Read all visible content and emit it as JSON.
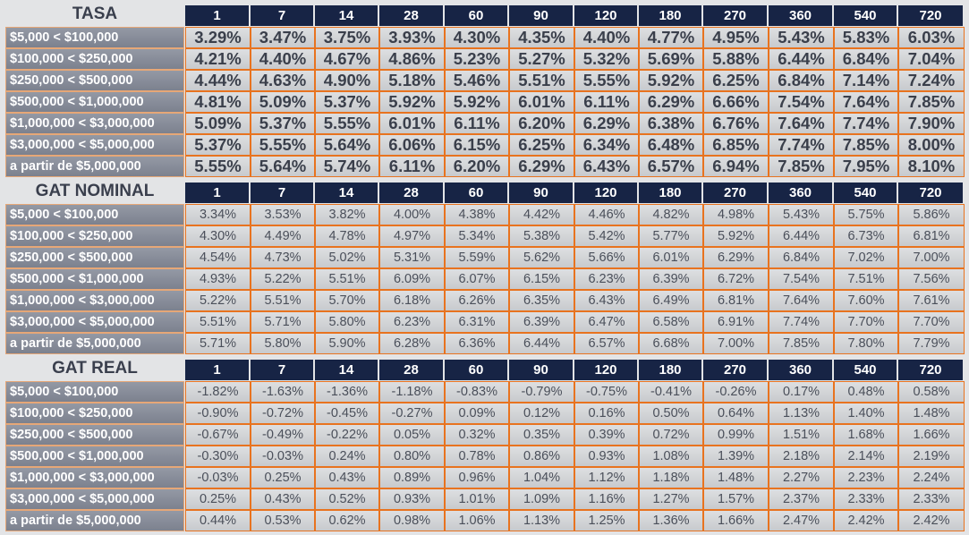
{
  "columns": [
    "1",
    "7",
    "14",
    "28",
    "60",
    "90",
    "120",
    "180",
    "270",
    "360",
    "540",
    "720"
  ],
  "row_labels": [
    "$5,000 < $100,000",
    "$100,000 < $250,000",
    "$250,000 < $500,000",
    "$500,000 < $1,000,000",
    "$1,000,000 < $3,000,000",
    "$3,000,000 < $5,000,000",
    "a partir de $5,000,000"
  ],
  "tables": [
    {
      "title": "TASA",
      "rows": [
        [
          "3.29%",
          "3.47%",
          "3.75%",
          "3.93%",
          "4.30%",
          "4.35%",
          "4.40%",
          "4.77%",
          "4.95%",
          "5.43%",
          "5.83%",
          "6.03%"
        ],
        [
          "4.21%",
          "4.40%",
          "4.67%",
          "4.86%",
          "5.23%",
          "5.27%",
          "5.32%",
          "5.69%",
          "5.88%",
          "6.44%",
          "6.84%",
          "7.04%"
        ],
        [
          "4.44%",
          "4.63%",
          "4.90%",
          "5.18%",
          "5.46%",
          "5.51%",
          "5.55%",
          "5.92%",
          "6.25%",
          "6.84%",
          "7.14%",
          "7.24%"
        ],
        [
          "4.81%",
          "5.09%",
          "5.37%",
          "5.92%",
          "5.92%",
          "6.01%",
          "6.11%",
          "6.29%",
          "6.66%",
          "7.54%",
          "7.64%",
          "7.85%"
        ],
        [
          "5.09%",
          "5.37%",
          "5.55%",
          "6.01%",
          "6.11%",
          "6.20%",
          "6.29%",
          "6.38%",
          "6.76%",
          "7.64%",
          "7.74%",
          "7.90%"
        ],
        [
          "5.37%",
          "5.55%",
          "5.64%",
          "6.06%",
          "6.15%",
          "6.25%",
          "6.34%",
          "6.48%",
          "6.85%",
          "7.74%",
          "7.85%",
          "8.00%"
        ],
        [
          "5.55%",
          "5.64%",
          "5.74%",
          "6.11%",
          "6.20%",
          "6.29%",
          "6.43%",
          "6.57%",
          "6.94%",
          "7.85%",
          "7.95%",
          "8.10%"
        ]
      ]
    },
    {
      "title": "GAT NOMINAL",
      "rows": [
        [
          "3.34%",
          "3.53%",
          "3.82%",
          "4.00%",
          "4.38%",
          "4.42%",
          "4.46%",
          "4.82%",
          "4.98%",
          "5.43%",
          "5.75%",
          "5.86%"
        ],
        [
          "4.30%",
          "4.49%",
          "4.78%",
          "4.97%",
          "5.34%",
          "5.38%",
          "5.42%",
          "5.77%",
          "5.92%",
          "6.44%",
          "6.73%",
          "6.81%"
        ],
        [
          "4.54%",
          "4.73%",
          "5.02%",
          "5.31%",
          "5.59%",
          "5.62%",
          "5.66%",
          "6.01%",
          "6.29%",
          "6.84%",
          "7.02%",
          "7.00%"
        ],
        [
          "4.93%",
          "5.22%",
          "5.51%",
          "6.09%",
          "6.07%",
          "6.15%",
          "6.23%",
          "6.39%",
          "6.72%",
          "7.54%",
          "7.51%",
          "7.56%"
        ],
        [
          "5.22%",
          "5.51%",
          "5.70%",
          "6.18%",
          "6.26%",
          "6.35%",
          "6.43%",
          "6.49%",
          "6.81%",
          "7.64%",
          "7.60%",
          "7.61%"
        ],
        [
          "5.51%",
          "5.71%",
          "5.80%",
          "6.23%",
          "6.31%",
          "6.39%",
          "6.47%",
          "6.58%",
          "6.91%",
          "7.74%",
          "7.70%",
          "7.70%"
        ],
        [
          "5.71%",
          "5.80%",
          "5.90%",
          "6.28%",
          "6.36%",
          "6.44%",
          "6.57%",
          "6.68%",
          "7.00%",
          "7.85%",
          "7.80%",
          "7.79%"
        ]
      ]
    },
    {
      "title": "GAT REAL",
      "rows": [
        [
          "-1.82%",
          "-1.63%",
          "-1.36%",
          "-1.18%",
          "-0.83%",
          "-0.79%",
          "-0.75%",
          "-0.41%",
          "-0.26%",
          "0.17%",
          "0.48%",
          "0.58%"
        ],
        [
          "-0.90%",
          "-0.72%",
          "-0.45%",
          "-0.27%",
          "0.09%",
          "0.12%",
          "0.16%",
          "0.50%",
          "0.64%",
          "1.13%",
          "1.40%",
          "1.48%"
        ],
        [
          "-0.67%",
          "-0.49%",
          "-0.22%",
          "0.05%",
          "0.32%",
          "0.35%",
          "0.39%",
          "0.72%",
          "0.99%",
          "1.51%",
          "1.68%",
          "1.66%"
        ],
        [
          "-0.30%",
          "-0.03%",
          "0.24%",
          "0.80%",
          "0.78%",
          "0.86%",
          "0.93%",
          "1.08%",
          "1.39%",
          "2.18%",
          "2.14%",
          "2.19%"
        ],
        [
          "-0.03%",
          "0.25%",
          "0.43%",
          "0.89%",
          "0.96%",
          "1.04%",
          "1.12%",
          "1.18%",
          "1.48%",
          "2.27%",
          "2.23%",
          "2.24%"
        ],
        [
          "0.25%",
          "0.43%",
          "0.52%",
          "0.93%",
          "1.01%",
          "1.09%",
          "1.16%",
          "1.27%",
          "1.57%",
          "2.37%",
          "2.33%",
          "2.33%"
        ],
        [
          "0.44%",
          "0.53%",
          "0.62%",
          "0.98%",
          "1.06%",
          "1.13%",
          "1.25%",
          "1.36%",
          "1.66%",
          "2.47%",
          "2.42%",
          "2.42%"
        ]
      ]
    }
  ]
}
